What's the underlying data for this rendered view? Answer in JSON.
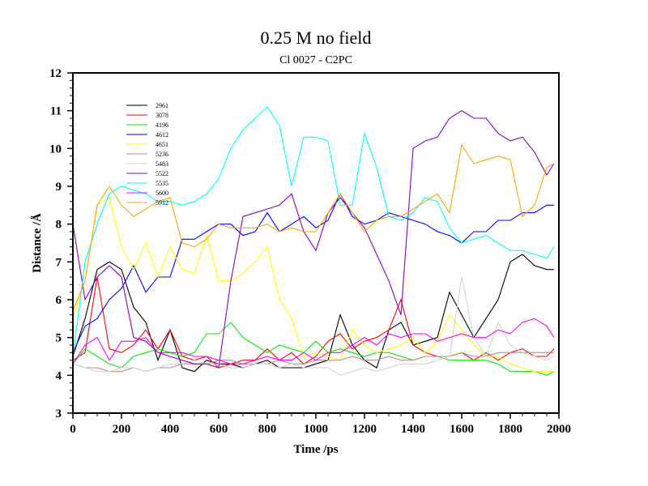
{
  "chart_data": {
    "type": "line",
    "title": "0.25 M no field",
    "subtitle": "Cl 0027 - C2PC",
    "xlabel": "Time /ps",
    "ylabel": "Distance /Å",
    "xlim": [
      0,
      2000
    ],
    "ylim": [
      3,
      12
    ],
    "xticks": [
      0,
      200,
      400,
      600,
      800,
      1000,
      1200,
      1400,
      1600,
      1800,
      2000
    ],
    "yticks": [
      3,
      4,
      5,
      6,
      7,
      8,
      9,
      10,
      11,
      12
    ],
    "grid": false,
    "legend_position": "top-left",
    "x": [
      0,
      50,
      100,
      150,
      200,
      250,
      300,
      350,
      400,
      450,
      500,
      550,
      600,
      650,
      700,
      750,
      800,
      850,
      900,
      950,
      1000,
      1050,
      1100,
      1150,
      1200,
      1250,
      1300,
      1350,
      1400,
      1450,
      1500,
      1550,
      1600,
      1650,
      1700,
      1750,
      1800,
      1850,
      1900,
      1950,
      1980
    ],
    "series": [
      {
        "name": "2961",
        "color": "#000000",
        "values": [
          4.5,
          5.5,
          6.8,
          7.0,
          6.8,
          5.8,
          5.4,
          4.4,
          5.2,
          4.2,
          4.1,
          4.4,
          4.3,
          4.3,
          4.2,
          4.3,
          4.4,
          4.2,
          4.2,
          4.2,
          4.3,
          4.4,
          5.6,
          4.8,
          4.4,
          4.2,
          5.2,
          5.4,
          4.8,
          4.9,
          5.0,
          6.2,
          5.6,
          5.0,
          5.5,
          6.0,
          7.0,
          7.2,
          6.9,
          6.8,
          6.8
        ]
      },
      {
        "name": "3078",
        "color": "#ff0000",
        "values": [
          4.4,
          4.6,
          6.6,
          4.7,
          4.6,
          4.8,
          5.2,
          4.7,
          5.2,
          4.5,
          4.4,
          4.5,
          4.2,
          4.3,
          4.4,
          4.4,
          4.7,
          4.4,
          4.6,
          4.3,
          4.5,
          4.9,
          5.1,
          4.7,
          4.9,
          5.0,
          5.2,
          6.0,
          4.8,
          4.6,
          4.5,
          4.5,
          4.6,
          4.4,
          4.6,
          4.4,
          4.6,
          4.7,
          4.5,
          4.5,
          4.7
        ]
      },
      {
        "name": "4196",
        "color": "#00ee00",
        "values": [
          4.3,
          4.7,
          4.5,
          4.3,
          4.2,
          4.5,
          4.6,
          4.7,
          4.6,
          4.5,
          4.6,
          5.1,
          5.1,
          5.4,
          5.0,
          4.8,
          4.6,
          4.8,
          4.7,
          4.6,
          4.9,
          4.6,
          4.7,
          4.6,
          4.5,
          4.6,
          4.6,
          4.5,
          4.4,
          4.5,
          4.5,
          4.4,
          4.4,
          4.4,
          4.4,
          4.3,
          4.1,
          4.1,
          4.1,
          4.0,
          4.1
        ]
      },
      {
        "name": "4612",
        "color": "#0000ff",
        "values": [
          4.6,
          5.3,
          5.5,
          6.0,
          6.3,
          6.9,
          6.2,
          6.6,
          6.6,
          7.6,
          7.6,
          7.8,
          8.0,
          8.0,
          7.7,
          7.8,
          8.3,
          7.8,
          8.0,
          8.2,
          7.9,
          8.1,
          8.8,
          8.2,
          8.0,
          8.1,
          8.3,
          8.2,
          8.1,
          8.0,
          7.8,
          7.7,
          7.5,
          7.8,
          7.8,
          8.1,
          8.1,
          8.3,
          8.3,
          8.5,
          8.5
        ]
      },
      {
        "name": "4651",
        "color": "#ffff00",
        "values": [
          5.5,
          6.5,
          8.5,
          8.7,
          7.4,
          6.8,
          7.5,
          6.6,
          7.4,
          6.8,
          6.7,
          7.7,
          6.5,
          6.5,
          6.7,
          7.0,
          7.4,
          6.0,
          5.5,
          4.5,
          4.6,
          4.5,
          4.4,
          5.2,
          4.8,
          4.6,
          4.7,
          4.8,
          5.0,
          4.6,
          4.9,
          5.6,
          5.2,
          4.8,
          4.5,
          4.5,
          4.3,
          4.2,
          4.1,
          4.1,
          4.1
        ]
      },
      {
        "name": "5236",
        "color": "#bc8f8f",
        "values": [
          4.3,
          4.2,
          4.2,
          4.1,
          4.1,
          4.2,
          4.1,
          4.2,
          4.2,
          4.3,
          4.3,
          4.3,
          4.4,
          4.4,
          4.3,
          4.3,
          4.3,
          4.4,
          4.3,
          4.3,
          4.4,
          4.4,
          4.4,
          4.5,
          4.4,
          4.4,
          4.5,
          4.4,
          4.4,
          4.5,
          4.5,
          4.5,
          4.6,
          4.5,
          4.5,
          4.6,
          4.6,
          4.6,
          4.6,
          4.6,
          4.6
        ]
      },
      {
        "name": "5483",
        "color": "#d3d3d3",
        "values": [
          4.3,
          4.2,
          4.1,
          4.1,
          4.2,
          4.2,
          4.1,
          4.2,
          4.3,
          4.3,
          4.4,
          4.3,
          4.3,
          4.2,
          4.2,
          4.3,
          4.3,
          4.2,
          4.3,
          4.2,
          4.2,
          4.2,
          4.0,
          4.1,
          4.2,
          4.1,
          4.2,
          4.3,
          4.3,
          4.3,
          4.4,
          4.5,
          6.6,
          5.0,
          4.5,
          5.4,
          4.8,
          4.6,
          4.5,
          4.4,
          4.5
        ]
      },
      {
        "name": "5522",
        "color": "#8b00cc",
        "values": [
          8.0,
          6.0,
          6.6,
          6.9,
          6.6,
          5.0,
          4.9,
          4.6,
          4.5,
          4.4,
          4.3,
          4.3,
          4.2,
          6.5,
          8.2,
          8.3,
          8.4,
          8.5,
          8.8,
          7.8,
          7.3,
          8.3,
          8.7,
          8.3,
          7.9,
          7.2,
          6.5,
          5.6,
          10.0,
          10.2,
          10.3,
          10.8,
          11.0,
          10.8,
          10.8,
          10.4,
          10.2,
          10.3,
          9.9,
          9.3,
          9.6
        ]
      },
      {
        "name": "5535",
        "color": "#00ffff",
        "values": [
          4.5,
          7.0,
          8.0,
          8.8,
          9.0,
          8.9,
          8.8,
          8.6,
          8.6,
          8.5,
          8.6,
          8.8,
          9.2,
          10.0,
          10.5,
          10.8,
          11.1,
          10.6,
          9.0,
          10.3,
          10.3,
          10.2,
          8.5,
          8.5,
          10.4,
          9.5,
          8.2,
          8.1,
          8.3,
          8.7,
          8.6,
          7.9,
          7.5,
          7.6,
          7.7,
          7.5,
          7.3,
          7.3,
          7.2,
          7.1,
          7.4
        ]
      },
      {
        "name": "5600",
        "color": "#ff00ff",
        "values": [
          4.3,
          4.8,
          5.0,
          4.4,
          4.9,
          4.9,
          5.0,
          4.6,
          4.6,
          4.6,
          4.5,
          4.5,
          4.4,
          4.3,
          4.3,
          4.4,
          4.5,
          4.4,
          4.4,
          4.6,
          4.4,
          4.6,
          4.6,
          4.8,
          5.0,
          4.8,
          5.1,
          5.0,
          5.1,
          5.1,
          4.9,
          5.0,
          5.1,
          5.0,
          5.0,
          5.2,
          5.1,
          5.4,
          5.5,
          5.3,
          5.0
        ]
      },
      {
        "name": "5912",
        "color": "#ffa500",
        "values": [
          5.7,
          6.5,
          8.5,
          9.0,
          8.5,
          8.2,
          8.4,
          8.6,
          8.7,
          7.5,
          7.4,
          7.6,
          8.0,
          7.9,
          7.9,
          7.9,
          8.0,
          7.8,
          7.9,
          7.8,
          7.8,
          8.3,
          8.8,
          8.3,
          7.8,
          8.1,
          8.2,
          8.2,
          8.4,
          8.6,
          8.8,
          8.3,
          10.1,
          9.6,
          9.7,
          9.8,
          9.7,
          8.2,
          8.5,
          9.5,
          9.6
        ]
      }
    ]
  }
}
